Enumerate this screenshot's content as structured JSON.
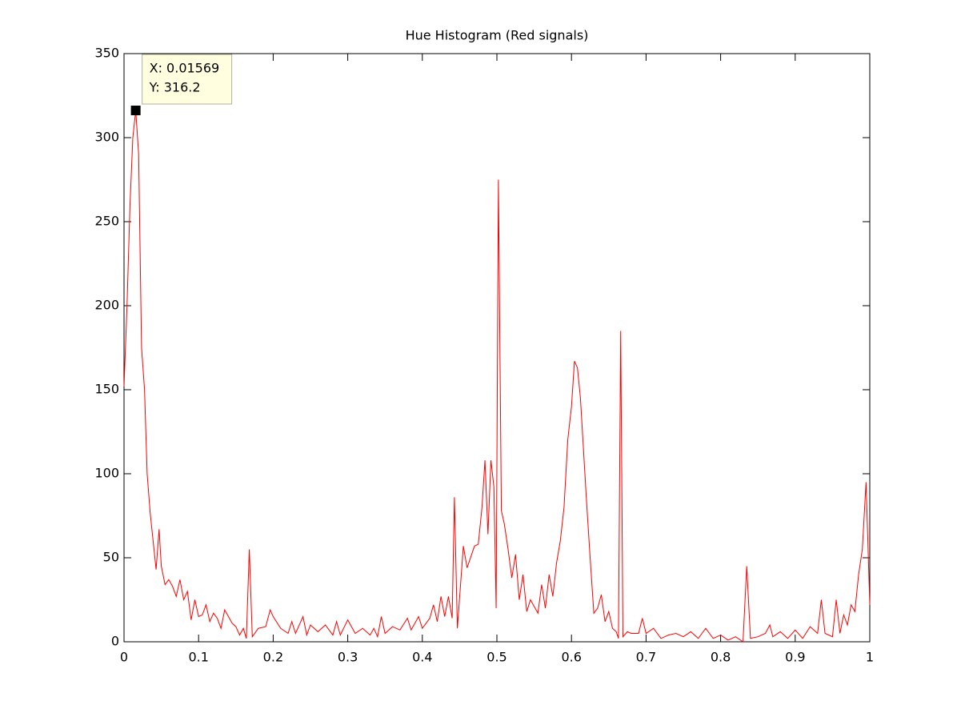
{
  "chart_data": {
    "type": "line",
    "title": "Hue Histogram (Red signals)",
    "x": [
      0,
      0.004,
      0.008,
      0.0118,
      0.0157,
      0.0196,
      0.0235,
      0.0275,
      0.031,
      0.035,
      0.039,
      0.043,
      0.047,
      0.05,
      0.055,
      0.06,
      0.065,
      0.07,
      0.075,
      0.08,
      0.085,
      0.09,
      0.095,
      0.1,
      0.105,
      0.11,
      0.115,
      0.12,
      0.125,
      0.13,
      0.135,
      0.14,
      0.145,
      0.15,
      0.155,
      0.16,
      0.164,
      0.168,
      0.172,
      0.18,
      0.19,
      0.196,
      0.2,
      0.21,
      0.22,
      0.225,
      0.23,
      0.24,
      0.245,
      0.25,
      0.26,
      0.27,
      0.28,
      0.285,
      0.29,
      0.3,
      0.31,
      0.32,
      0.33,
      0.335,
      0.34,
      0.345,
      0.35,
      0.36,
      0.37,
      0.38,
      0.385,
      0.395,
      0.4,
      0.41,
      0.415,
      0.42,
      0.425,
      0.43,
      0.435,
      0.44,
      0.443,
      0.447,
      0.455,
      0.46,
      0.47,
      0.475,
      0.48,
      0.484,
      0.488,
      0.492,
      0.496,
      0.499,
      0.502,
      0.506,
      0.51,
      0.515,
      0.52,
      0.525,
      0.53,
      0.535,
      0.54,
      0.545,
      0.55,
      0.555,
      0.56,
      0.565,
      0.57,
      0.575,
      0.58,
      0.585,
      0.59,
      0.595,
      0.6,
      0.604,
      0.608,
      0.612,
      0.62,
      0.625,
      0.63,
      0.635,
      0.64,
      0.645,
      0.65,
      0.655,
      0.66,
      0.663,
      0.666,
      0.669,
      0.675,
      0.68,
      0.69,
      0.695,
      0.7,
      0.71,
      0.72,
      0.73,
      0.74,
      0.75,
      0.76,
      0.77,
      0.78,
      0.79,
      0.8,
      0.81,
      0.82,
      0.83,
      0.835,
      0.84,
      0.85,
      0.86,
      0.866,
      0.87,
      0.88,
      0.89,
      0.9,
      0.91,
      0.92,
      0.93,
      0.935,
      0.94,
      0.95,
      0.955,
      0.96,
      0.965,
      0.97,
      0.975,
      0.98,
      0.985,
      0.99,
      0.995,
      1
    ],
    "series": [
      {
        "color": "#ff0000",
        "values": [
          152,
          200,
          260,
          300,
          316.2,
          290,
          175,
          150,
          100,
          77,
          60,
          43,
          67,
          45,
          34,
          37,
          33,
          27,
          37,
          25,
          30,
          13,
          25,
          15,
          16,
          22,
          12,
          17,
          14,
          8,
          19,
          15,
          11,
          9,
          4,
          8,
          2,
          55,
          3,
          8,
          9,
          19,
          15,
          8,
          5,
          12,
          5,
          15,
          4,
          10,
          6,
          10,
          4,
          12,
          4,
          13,
          5,
          8,
          4,
          8,
          3,
          15,
          5,
          9,
          7,
          14,
          7,
          15,
          8,
          14,
          22,
          12,
          27,
          15,
          27,
          14,
          86,
          8,
          57,
          44,
          57,
          58,
          80,
          108,
          64,
          108,
          92,
          20,
          275,
          78,
          70,
          55,
          38,
          52,
          25,
          40,
          18,
          25,
          21,
          17,
          34,
          20,
          40,
          27,
          47,
          60,
          80,
          120,
          140,
          167,
          163,
          145,
          85,
          50,
          17,
          20,
          28,
          12,
          18,
          8,
          6,
          2,
          185,
          3,
          6,
          5,
          5,
          14,
          5,
          8,
          2,
          4,
          5,
          3,
          6,
          2,
          8,
          2,
          4,
          1,
          3,
          0,
          45,
          2,
          3,
          5,
          10,
          3,
          6,
          2,
          7,
          2,
          9,
          5,
          25,
          5,
          3,
          25,
          5,
          16,
          10,
          22,
          18,
          40,
          55,
          95,
          22
        ]
      }
    ],
    "xlim": [
      0,
      1
    ],
    "ylim": [
      0,
      350
    ],
    "xticks": [
      0,
      0.1,
      0.2,
      0.3,
      0.4,
      0.5,
      0.6,
      0.7,
      0.8,
      0.9,
      1
    ],
    "yticks": [
      0,
      50,
      100,
      150,
      200,
      250,
      300,
      350
    ],
    "datatip": {
      "x": 0.01569,
      "y": 316.2,
      "labels": [
        "X: 0.01569",
        "Y: 316.2"
      ]
    }
  }
}
